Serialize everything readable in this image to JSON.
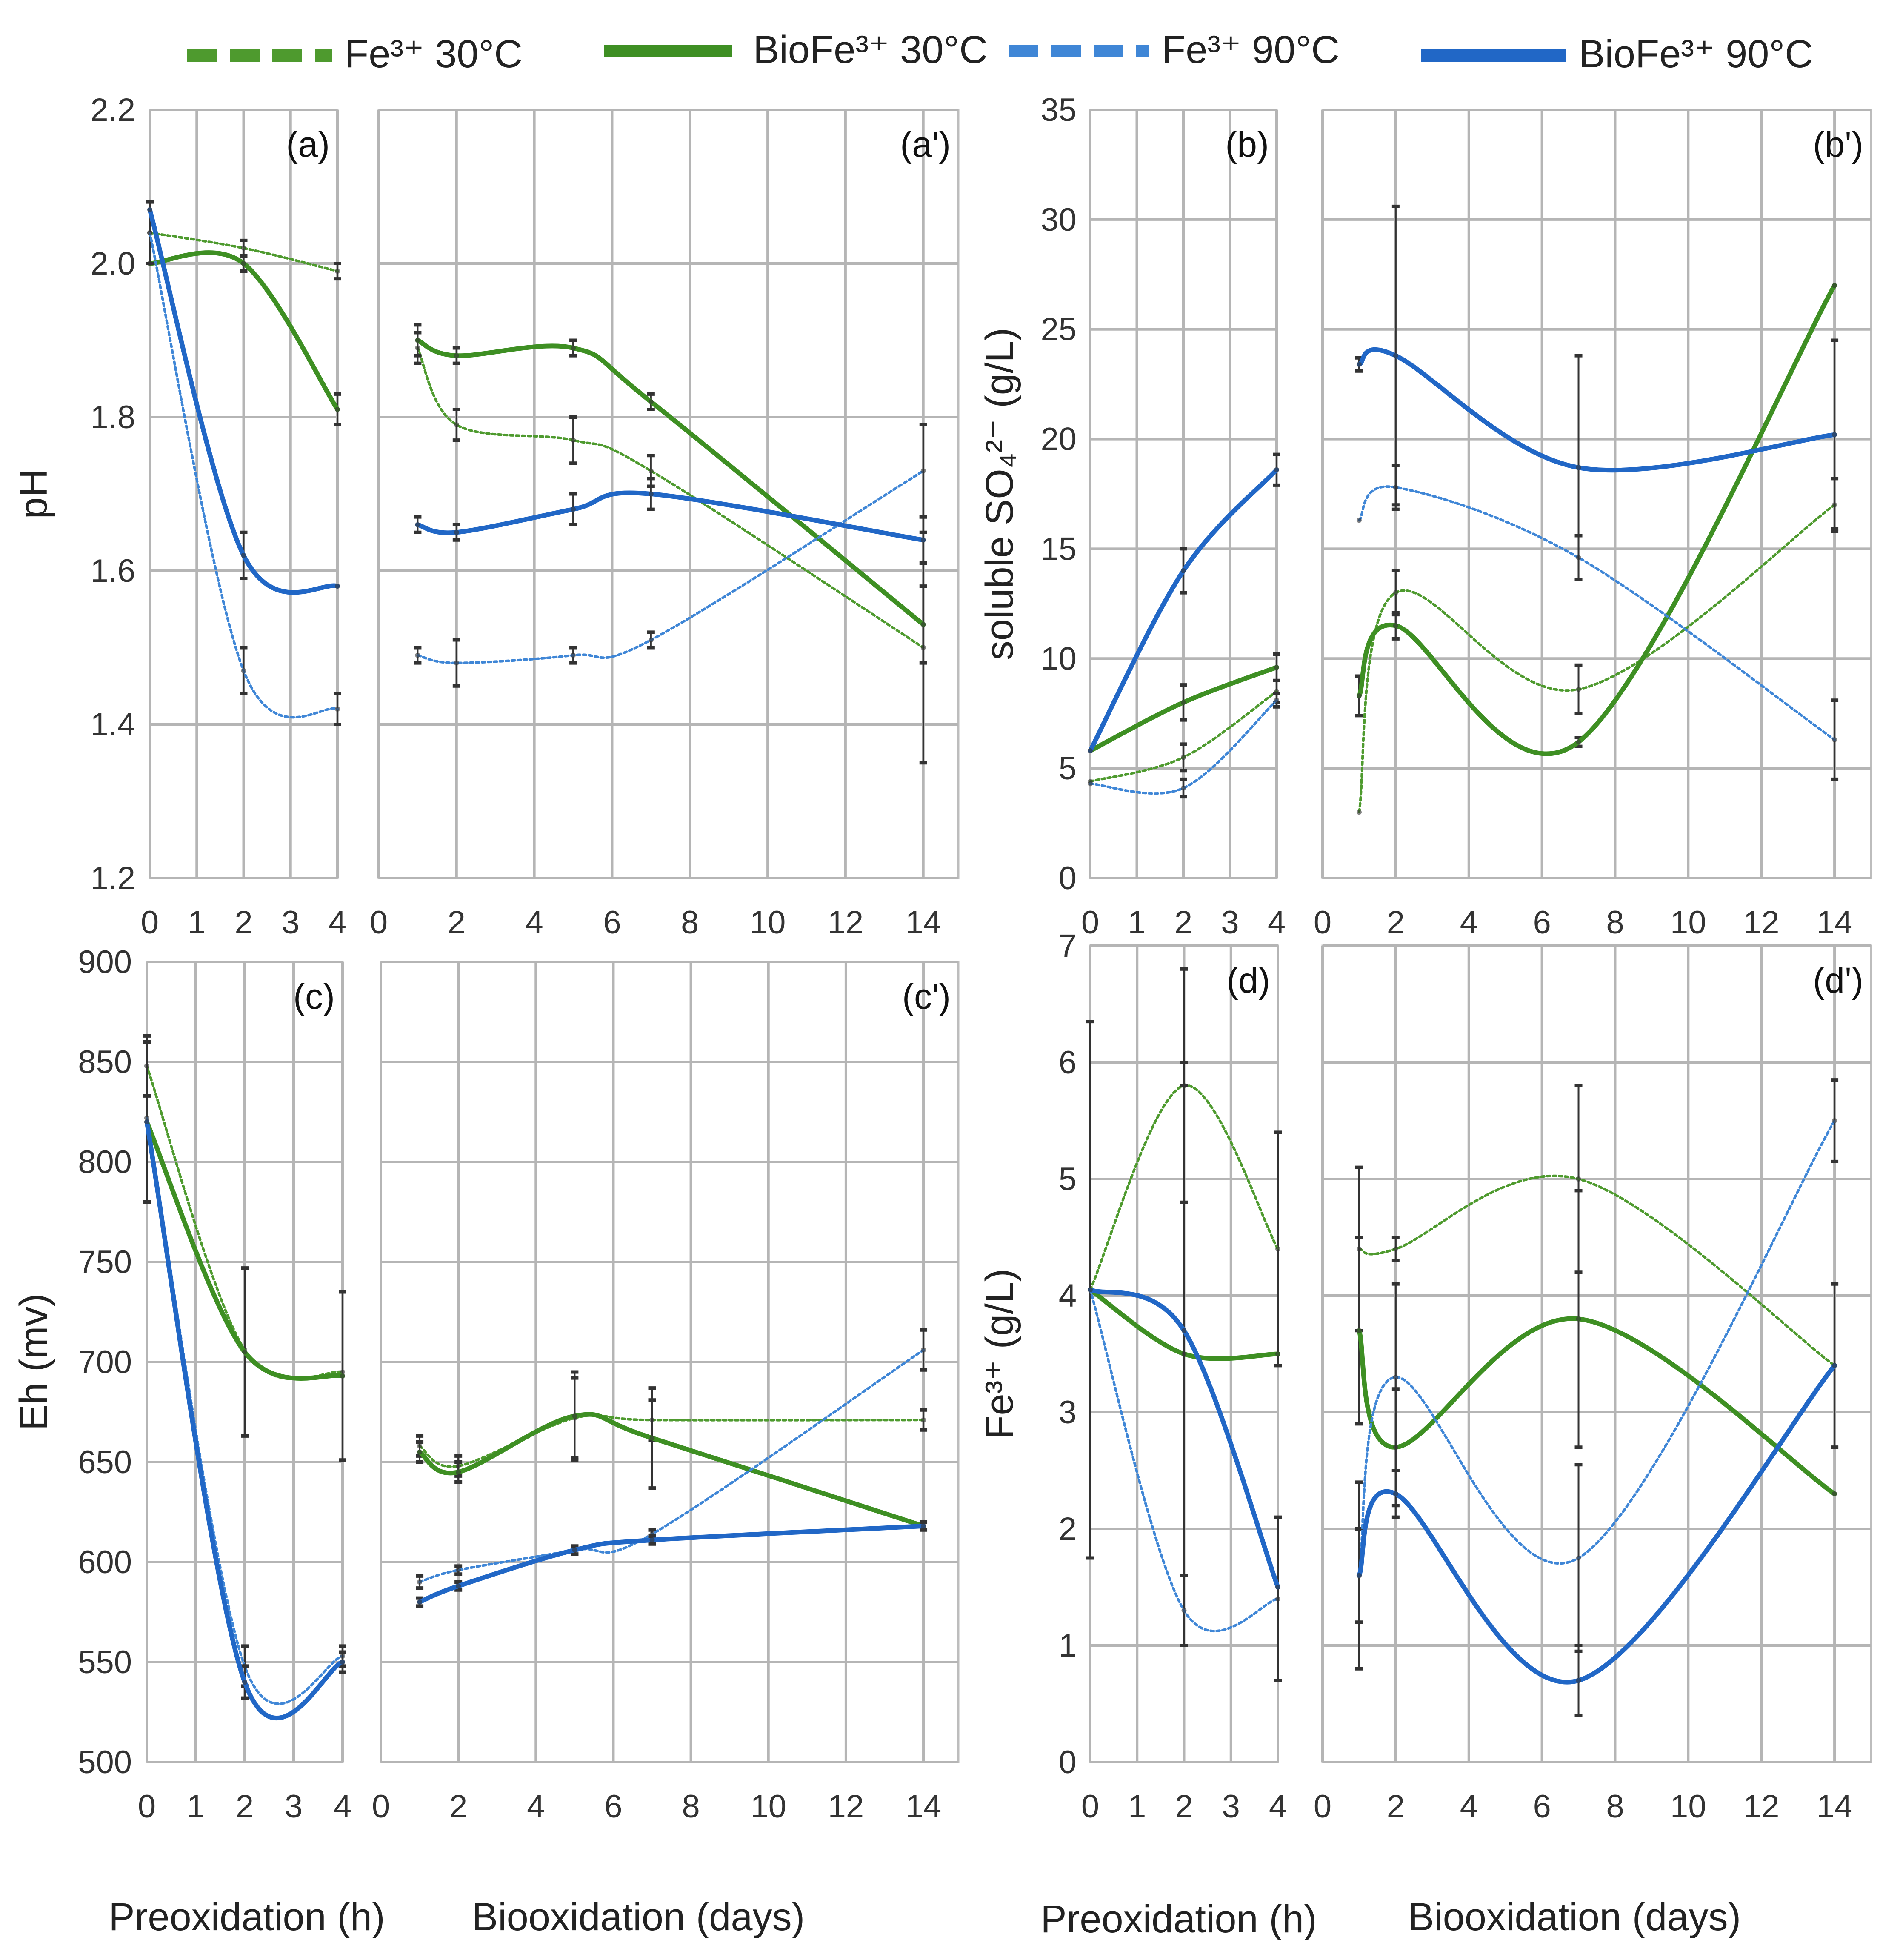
{
  "legend": [
    {
      "label": "Fe³⁺ 30°C",
      "series_key": "fe30"
    },
    {
      "label": "BioFe³⁺ 30°C",
      "series_key": "bio30"
    },
    {
      "label": "Fe³⁺ 90°C",
      "series_key": "fe90"
    },
    {
      "label": "BioFe³⁺ 90°C",
      "series_key": "bio90"
    }
  ],
  "styles": {
    "fe30": {
      "color": "#4e9a2e",
      "dashed": true,
      "thick": false
    },
    "bio30": {
      "color": "#3e8f23",
      "dashed": false,
      "thick": true
    },
    "fe90": {
      "color": "#3f86d6",
      "dashed": true,
      "thick": false
    },
    "bio90": {
      "color": "#2167c6",
      "dashed": false,
      "thick": true
    }
  },
  "xlabels": {
    "preoxidation": "Preoxidation (h)",
    "biooxidation": "Biooxidation (days)"
  },
  "chart_data": [
    {
      "id": "a",
      "type": "line",
      "panel_label": "(a)",
      "ylabel": "pH",
      "xlim": [
        0,
        4
      ],
      "xticks": [
        0,
        1,
        2,
        3,
        4
      ],
      "ylim": [
        1.2,
        2.2
      ],
      "yticks": [
        1.2,
        1.4,
        1.6,
        1.8,
        2.0,
        2.2
      ],
      "ytick_labels": [
        "1.2",
        "1.4",
        "1.6",
        "1.8",
        "2.0",
        "2.2"
      ],
      "series": [
        {
          "key": "fe30",
          "name": "Fe³⁺ 30°C",
          "x": [
            0,
            2,
            4
          ],
          "y": [
            2.04,
            2.02,
            1.99
          ],
          "err": [
            0,
            0.01,
            0.01
          ]
        },
        {
          "key": "bio30",
          "name": "BioFe³⁺ 30°C",
          "x": [
            0,
            2,
            4
          ],
          "y": [
            2.0,
            2.0,
            1.81
          ],
          "err": [
            0,
            0.01,
            0.02
          ]
        },
        {
          "key": "fe90",
          "name": "Fe³⁺ 90°C",
          "x": [
            0,
            2,
            4
          ],
          "y": [
            2.04,
            1.47,
            1.42
          ],
          "err": [
            0.04,
            0.03,
            0.02
          ]
        },
        {
          "key": "bio90",
          "name": "BioFe³⁺ 90°C",
          "x": [
            0,
            2,
            4
          ],
          "y": [
            2.07,
            1.62,
            1.58
          ],
          "err": [
            0,
            0.03,
            0
          ]
        }
      ]
    },
    {
      "id": "a2",
      "type": "line",
      "panel_label": "(a')",
      "ylabel": "",
      "xlim": [
        0,
        14.9
      ],
      "xticks": [
        0,
        2,
        4,
        6,
        8,
        10,
        12,
        14
      ],
      "ylim": [
        1.2,
        2.2
      ],
      "yticks": [
        1.2,
        1.4,
        1.6,
        1.8,
        2.0,
        2.2
      ],
      "ytick_labels": [],
      "series": [
        {
          "key": "fe30",
          "name": "Fe³⁺ 30°C",
          "x": [
            1,
            2,
            5,
            7,
            14
          ],
          "y": [
            1.89,
            1.79,
            1.77,
            1.73,
            1.5
          ],
          "err": [
            0.02,
            0.02,
            0.03,
            0.02,
            0.15
          ]
        },
        {
          "key": "bio30",
          "name": "BioFe³⁺ 30°C",
          "x": [
            1,
            2,
            5,
            7,
            14
          ],
          "y": [
            1.9,
            1.88,
            1.89,
            1.82,
            1.53
          ],
          "err": [
            0.02,
            0.01,
            0.01,
            0.01,
            0.05
          ]
        },
        {
          "key": "fe90",
          "name": "Fe³⁺ 90°C",
          "x": [
            1,
            2,
            5,
            7,
            14
          ],
          "y": [
            1.49,
            1.48,
            1.49,
            1.51,
            1.73
          ],
          "err": [
            0.01,
            0.03,
            0.01,
            0.01,
            0.06
          ]
        },
        {
          "key": "bio90",
          "name": "BioFe³⁺ 90°C",
          "x": [
            1,
            2,
            5,
            7,
            14
          ],
          "y": [
            1.66,
            1.65,
            1.68,
            1.7,
            1.64
          ],
          "err": [
            0.01,
            0.01,
            0.02,
            0.02,
            0.03
          ]
        }
      ]
    },
    {
      "id": "b",
      "type": "line",
      "panel_label": "(b)",
      "ylabel": "soluble SO₄²⁻ (g/L)",
      "xlim": [
        0,
        4
      ],
      "xticks": [
        0,
        1,
        2,
        3,
        4
      ],
      "ylim": [
        0,
        35
      ],
      "yticks": [
        0,
        5,
        10,
        15,
        20,
        25,
        30,
        35
      ],
      "ytick_labels": [
        "0",
        "5",
        "10",
        "15",
        "20",
        "25",
        "30",
        "35"
      ],
      "series": [
        {
          "key": "fe30",
          "name": "Fe³⁺ 30°C",
          "x": [
            0,
            2,
            4
          ],
          "y": [
            4.4,
            5.5,
            8.5
          ],
          "err": [
            0,
            0.6,
            0.5
          ]
        },
        {
          "key": "bio30",
          "name": "BioFe³⁺ 30°C",
          "x": [
            0,
            2,
            4
          ],
          "y": [
            5.8,
            8.0,
            9.6
          ],
          "err": [
            0,
            0.8,
            0.6
          ]
        },
        {
          "key": "fe90",
          "name": "Fe³⁺ 90°C",
          "x": [
            0,
            2,
            4
          ],
          "y": [
            4.3,
            4.1,
            8.1
          ],
          "err": [
            0,
            0.4,
            0.3
          ]
        },
        {
          "key": "bio90",
          "name": "BioFe³⁺ 90°C",
          "x": [
            0,
            2,
            4
          ],
          "y": [
            5.8,
            14.0,
            18.6
          ],
          "err": [
            0,
            1.0,
            0.7
          ]
        }
      ]
    },
    {
      "id": "b2",
      "type": "line",
      "panel_label": "(b')",
      "ylabel": "",
      "xlim": [
        0,
        15
      ],
      "xticks": [
        0,
        2,
        4,
        6,
        8,
        10,
        12,
        14
      ],
      "ylim": [
        0,
        35
      ],
      "yticks": [
        0,
        5,
        10,
        15,
        20,
        25,
        30,
        35
      ],
      "ytick_labels": [],
      "series": [
        {
          "key": "fe30",
          "name": "Fe³⁺ 30°C",
          "x": [
            1,
            2,
            7,
            14
          ],
          "y": [
            3.0,
            13.0,
            8.6,
            17.0
          ],
          "err": [
            0,
            1.0,
            1.1,
            1.2
          ]
        },
        {
          "key": "bio30",
          "name": "BioFe³⁺ 30°C",
          "x": [
            1,
            2,
            7,
            14
          ],
          "y": [
            8.3,
            11.5,
            6.2,
            27.0
          ],
          "err": [
            0.9,
            0.6,
            0.2,
            0
          ]
        },
        {
          "key": "fe90",
          "name": "Fe³⁺ 90°C",
          "x": [
            1,
            2,
            7,
            14
          ],
          "y": [
            16.3,
            17.8,
            14.6,
            6.3
          ],
          "err": [
            0,
            1.0,
            1.0,
            1.8
          ]
        },
        {
          "key": "bio90",
          "name": "BioFe³⁺ 90°C",
          "x": [
            1,
            2,
            7,
            14
          ],
          "y": [
            23.4,
            23.8,
            18.7,
            20.2
          ],
          "err": [
            0.3,
            6.8,
            5.1,
            4.3
          ]
        }
      ]
    },
    {
      "id": "c",
      "type": "line",
      "panel_label": "(c)",
      "ylabel": "Eh (mv)",
      "xlim": [
        0,
        4
      ],
      "xticks": [
        0,
        1,
        2,
        3,
        4
      ],
      "ylim": [
        500,
        900
      ],
      "yticks": [
        500,
        550,
        600,
        650,
        700,
        750,
        800,
        850,
        900
      ],
      "ytick_labels": [
        "500",
        "550",
        "600",
        "650",
        "700",
        "750",
        "800",
        "850",
        "900"
      ],
      "series": [
        {
          "key": "fe30",
          "name": "Fe³⁺ 30°C",
          "x": [
            0,
            2,
            4
          ],
          "y": [
            848,
            706,
            695
          ],
          "err": [
            15,
            0,
            0
          ]
        },
        {
          "key": "bio30",
          "name": "BioFe³⁺ 30°C",
          "x": [
            0,
            2,
            4
          ],
          "y": [
            820,
            705,
            693
          ],
          "err": [
            40,
            42,
            42
          ]
        },
        {
          "key": "fe90",
          "name": "Fe³⁺ 90°C",
          "x": [
            0,
            2,
            4
          ],
          "y": [
            822,
            548,
            553
          ],
          "err": [
            0,
            10,
            5
          ]
        },
        {
          "key": "bio90",
          "name": "BioFe³⁺ 90°C",
          "x": [
            0,
            2,
            4
          ],
          "y": [
            820,
            540,
            550
          ],
          "err": [
            0,
            8,
            5
          ]
        }
      ]
    },
    {
      "id": "c2",
      "type": "line",
      "panel_label": "(c')",
      "ylabel": "",
      "xlim": [
        0,
        14.9
      ],
      "xticks": [
        0,
        2,
        4,
        6,
        8,
        10,
        12,
        14
      ],
      "ylim": [
        500,
        900
      ],
      "yticks": [
        500,
        550,
        600,
        650,
        700,
        750,
        800,
        850,
        900
      ],
      "ytick_labels": [],
      "series": [
        {
          "key": "fe30",
          "name": "Fe³⁺ 30°C",
          "x": [
            1,
            2,
            5,
            7,
            14
          ],
          "y": [
            658,
            648,
            672,
            671,
            671
          ],
          "err": [
            5,
            5,
            20,
            10,
            5
          ]
        },
        {
          "key": "bio30",
          "name": "BioFe³⁺ 30°C",
          "x": [
            1,
            2,
            5,
            7,
            14
          ],
          "y": [
            655,
            645,
            673,
            662,
            618
          ],
          "err": [
            5,
            5,
            22,
            25,
            0
          ]
        },
        {
          "key": "fe90",
          "name": "Fe³⁺ 90°C",
          "x": [
            1,
            2,
            5,
            7,
            14
          ],
          "y": [
            590,
            596,
            606,
            614,
            706
          ],
          "err": [
            3,
            2,
            2,
            2,
            10
          ]
        },
        {
          "key": "bio90",
          "name": "BioFe³⁺ 90°C",
          "x": [
            1,
            2,
            5,
            7,
            14
          ],
          "y": [
            580,
            588,
            606,
            611,
            618
          ],
          "err": [
            2,
            2,
            2,
            2,
            2
          ]
        }
      ]
    },
    {
      "id": "d",
      "type": "line",
      "panel_label": "(d)",
      "ylabel": "Fe³⁺ (g/L)",
      "xlim": [
        0,
        4
      ],
      "xticks": [
        0,
        1,
        2,
        3,
        4
      ],
      "ylim": [
        0,
        7
      ],
      "yticks": [
        0,
        1,
        2,
        3,
        4,
        5,
        6,
        7
      ],
      "ytick_labels": [
        "0",
        "1",
        "2",
        "3",
        "4",
        "5",
        "6",
        "7"
      ],
      "series": [
        {
          "key": "fe30",
          "name": "Fe³⁺ 30°C",
          "x": [
            0,
            2,
            4
          ],
          "y": [
            4.05,
            5.8,
            4.4
          ],
          "err": [
            0,
            1.0,
            1.0
          ]
        },
        {
          "key": "bio30",
          "name": "BioFe³⁺ 30°C",
          "x": [
            0,
            2,
            4
          ],
          "y": [
            4.05,
            3.5,
            3.5
          ],
          "err": [
            0,
            2.5,
            0
          ]
        },
        {
          "key": "fe90",
          "name": "Fe³⁺ 90°C",
          "x": [
            0,
            2,
            4
          ],
          "y": [
            4.05,
            1.3,
            1.4
          ],
          "err": [
            2.3,
            0.3,
            0.7
          ]
        },
        {
          "key": "bio90",
          "name": "BioFe³⁺ 90°C",
          "x": [
            0,
            2,
            4
          ],
          "y": [
            4.05,
            3.7,
            1.5
          ],
          "err": [
            0,
            2.1,
            0
          ]
        }
      ]
    },
    {
      "id": "d2",
      "type": "line",
      "panel_label": "(d')",
      "ylabel": "",
      "xlim": [
        0,
        15
      ],
      "xticks": [
        0,
        2,
        4,
        6,
        8,
        10,
        12,
        14
      ],
      "ylim": [
        0,
        7
      ],
      "yticks": [
        0,
        1,
        2,
        3,
        4,
        5,
        6,
        7
      ],
      "ytick_labels": [],
      "series": [
        {
          "key": "fe30",
          "name": "Fe³⁺ 30°C",
          "x": [
            1,
            2,
            7,
            14
          ],
          "y": [
            4.4,
            4.4,
            5.0,
            3.4
          ],
          "err": [
            0.7,
            0.1,
            0.8,
            0.7
          ]
        },
        {
          "key": "bio30",
          "name": "BioFe³⁺ 30°C",
          "x": [
            1,
            2,
            7,
            14
          ],
          "y": [
            3.7,
            2.7,
            3.8,
            2.3
          ],
          "err": [
            0.8,
            0.5,
            1.1,
            0
          ]
        },
        {
          "key": "fe90",
          "name": "Fe³⁺ 90°C",
          "x": [
            1,
            2,
            7,
            14
          ],
          "y": [
            1.6,
            3.3,
            1.75,
            5.5
          ],
          "err": [
            0.4,
            0.8,
            0.8,
            0.35
          ]
        },
        {
          "key": "bio90",
          "name": "BioFe³⁺ 90°C",
          "x": [
            1,
            2,
            7,
            14
          ],
          "y": [
            1.6,
            2.3,
            0.7,
            3.4
          ],
          "err": [
            0.8,
            0.2,
            0.3,
            0.7
          ]
        }
      ]
    }
  ]
}
